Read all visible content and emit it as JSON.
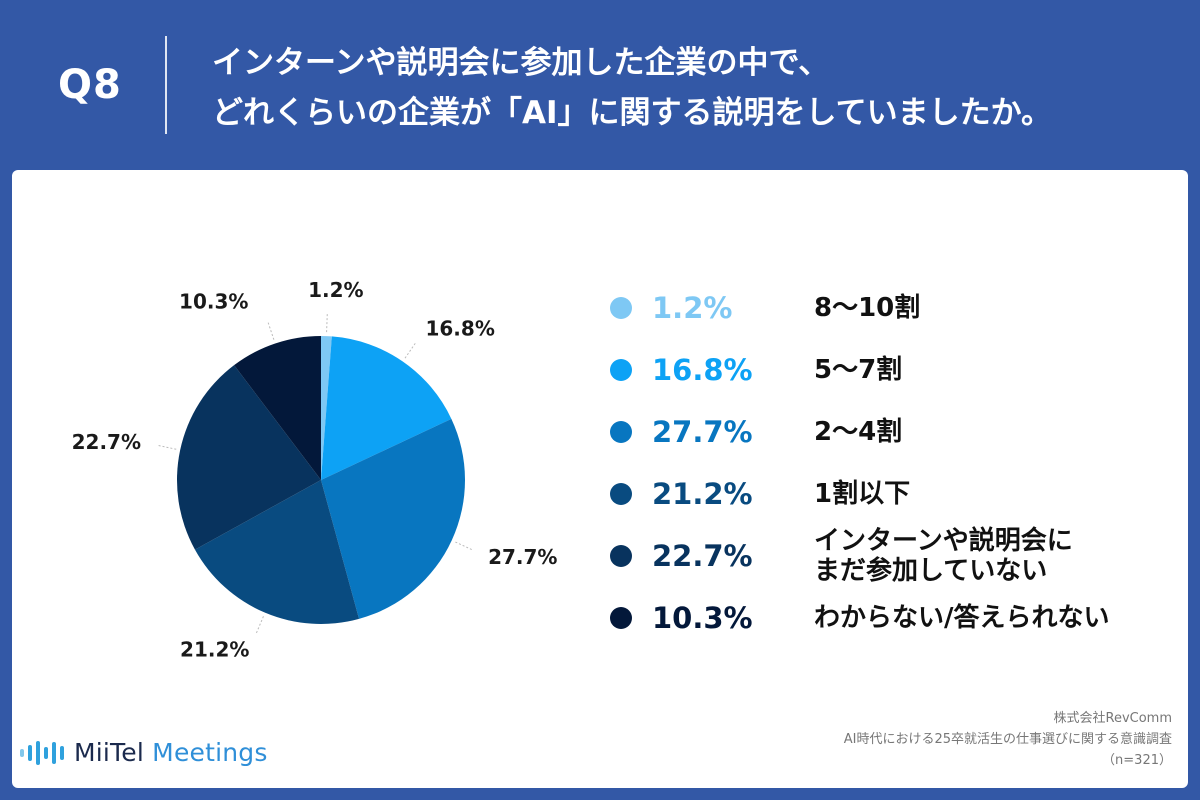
{
  "header": {
    "qnum": "Q8",
    "question_line1": "インターンや説明会に参加した企業の中で、",
    "question_line2": "どれくらいの企業が「AI」に関する説明をしていましたか。"
  },
  "chart_data": {
    "type": "pie",
    "unit": "%",
    "slices": [
      {
        "label": "8〜10割",
        "value": 1.2,
        "display": "1.2%",
        "color": "#7ec8f4"
      },
      {
        "label": "5〜7割",
        "value": 16.8,
        "display": "16.8%",
        "color": "#0da2f5"
      },
      {
        "label": "2〜4割",
        "value": 27.7,
        "display": "27.7%",
        "color": "#0876c0"
      },
      {
        "label": "1割以下",
        "value": 21.2,
        "display": "21.2%",
        "color": "#094b80"
      },
      {
        "label": "インターンや説明会に\nまだ参加していない",
        "value": 22.7,
        "display": "22.7%",
        "color": "#08335e"
      },
      {
        "label": "わからない/答えられない",
        "value": 10.3,
        "display": "10.3%",
        "color": "#03183a"
      }
    ]
  },
  "brand": {
    "name_part1": "MiiTel",
    "name_part2": "Meetings"
  },
  "source": {
    "line1": "株式会社RevComm",
    "line2": "AI時代における25卒就活生の仕事選びに関する意識調査",
    "line3": "（n=321）"
  }
}
